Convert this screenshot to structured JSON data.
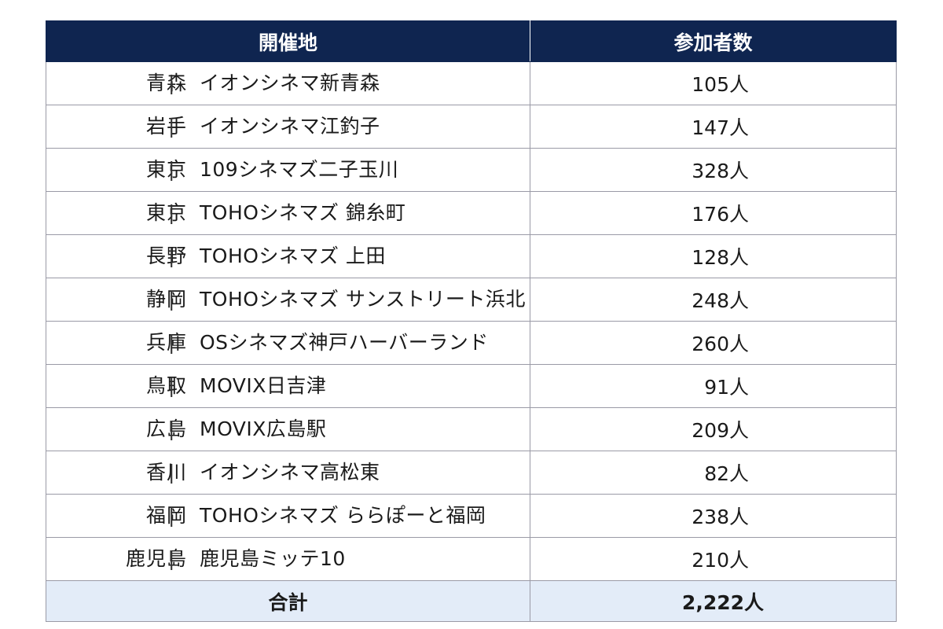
{
  "table": {
    "headers": [
      "開催地",
      "参加者数"
    ],
    "rows": [
      {
        "prefecture": "青森",
        "venue": "イオンシネマ新青森",
        "count": "105人"
      },
      {
        "prefecture": "岩手",
        "venue": "イオンシネマ江釣子",
        "count": "147人"
      },
      {
        "prefecture": "東京",
        "venue": "109シネマズ二子玉川",
        "count": "328人"
      },
      {
        "prefecture": "東京",
        "venue": "TOHOシネマズ 錦糸町",
        "count": "176人"
      },
      {
        "prefecture": "長野",
        "venue": "TOHOシネマズ 上田",
        "count": "128人"
      },
      {
        "prefecture": "静岡",
        "venue": "TOHOシネマズ サンストリート浜北",
        "count": "248人"
      },
      {
        "prefecture": "兵庫",
        "venue": "OSシネマズ神戸ハーバーランド",
        "count": "260人"
      },
      {
        "prefecture": "鳥取",
        "venue": "MOVIX日吉津",
        "count": "91人"
      },
      {
        "prefecture": "広島",
        "venue": "MOVIX広島駅",
        "count": "209人"
      },
      {
        "prefecture": "香川",
        "venue": "イオンシネマ高松東",
        "count": "82人"
      },
      {
        "prefecture": "福岡",
        "venue": "TOHOシネマズ ららぽーと福岡",
        "count": "238人"
      },
      {
        "prefecture": "鹿児島",
        "venue": "鹿児島ミッテ10",
        "count": "210人"
      }
    ],
    "separator": "|",
    "total": {
      "label": "合計",
      "count": "2,222人"
    }
  }
}
